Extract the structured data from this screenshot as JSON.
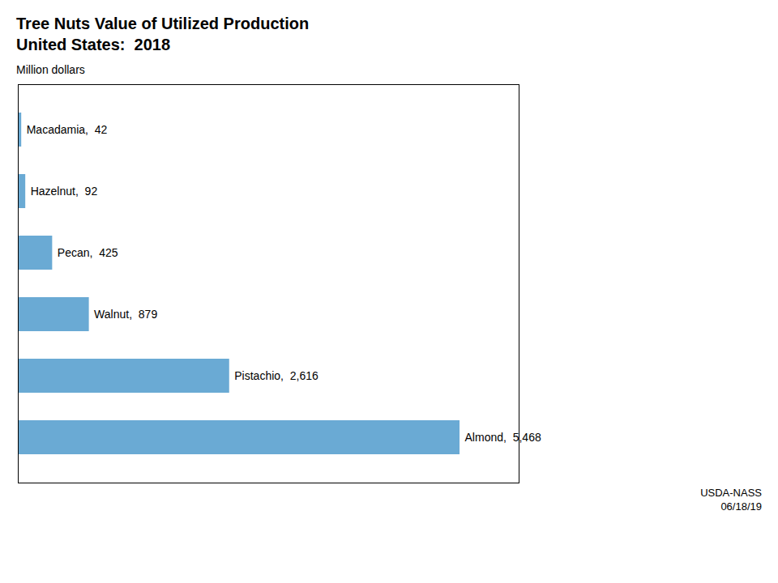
{
  "chart_data": {
    "type": "bar",
    "orientation": "horizontal",
    "title": "Tree Nuts Value of Utilized Production",
    "subtitle": "United States:  2018",
    "xlabel": "Million dollars",
    "categories": [
      "Almond",
      "Pistachio",
      "Walnut",
      "Pecan",
      "Hazelnut",
      "Macadamia"
    ],
    "values": [
      5468,
      2616,
      879,
      425,
      92,
      42
    ],
    "value_labels": [
      "Almond,  5,468",
      "Pistachio,  2,616",
      "Walnut,  879",
      "Pecan,  425",
      "Hazelnut,  92",
      "Macadamia,  42"
    ],
    "data_labels": true,
    "color": "#6aaad4",
    "xlim": [
      0,
      6200
    ],
    "tick_labels": false,
    "grid": false,
    "caption": [
      "USDA-NASS",
      "06/18/19"
    ]
  }
}
